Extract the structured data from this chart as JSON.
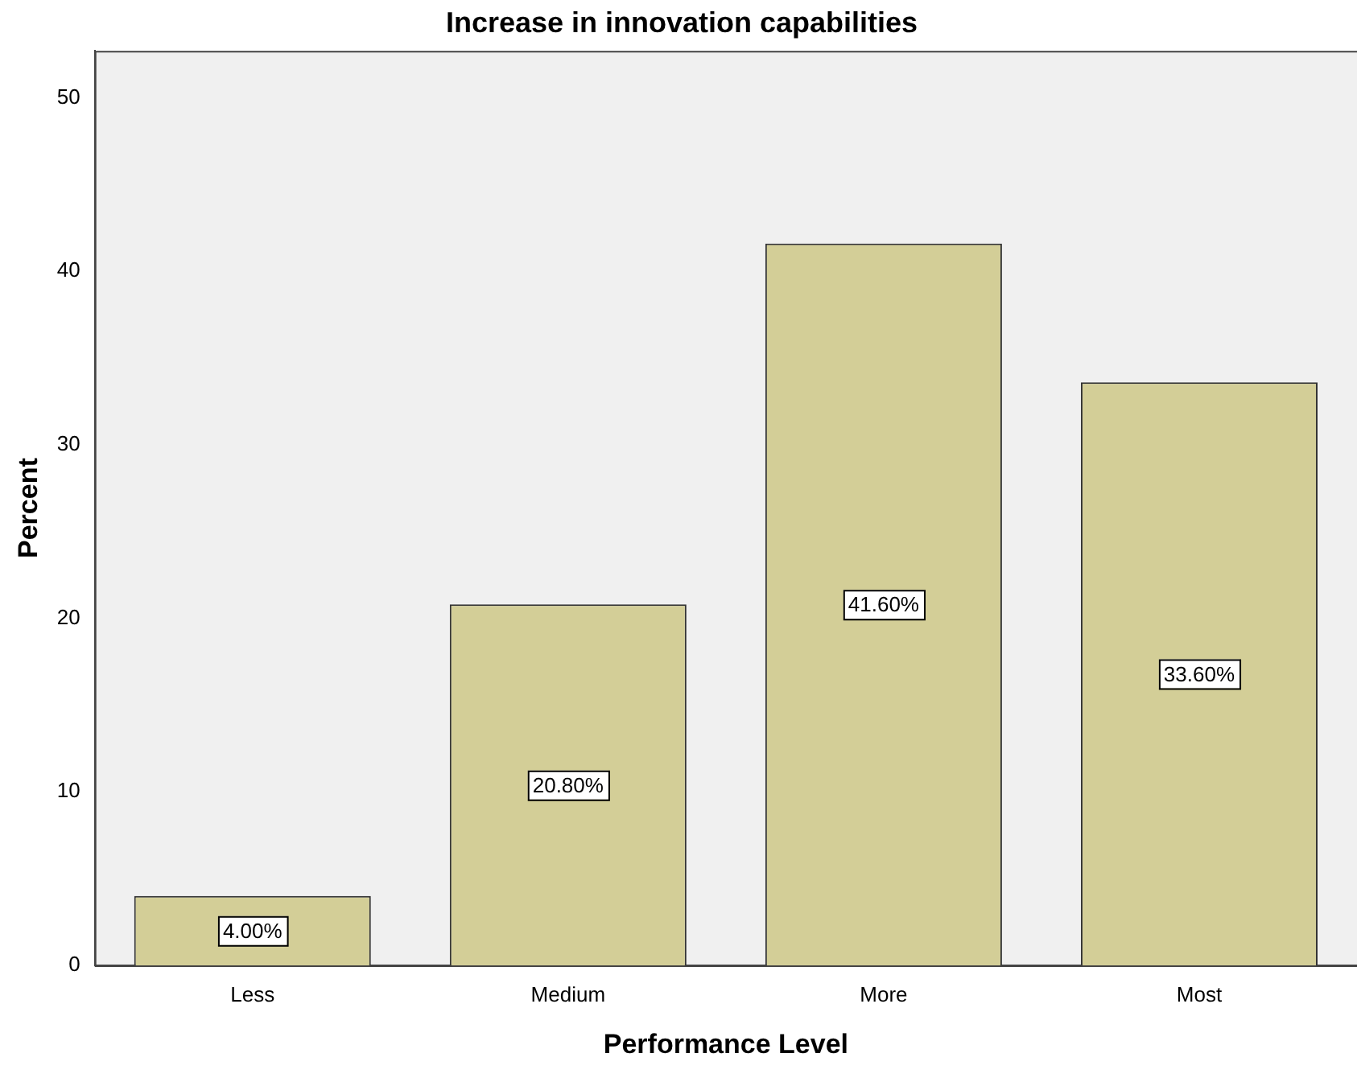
{
  "chart_data": {
    "type": "bar",
    "title": "Increase in innovation capabilities",
    "xlabel": "Performance Level",
    "ylabel": "Percent",
    "categories": [
      "Less",
      "Medium",
      "More",
      "Most"
    ],
    "values": [
      4.0,
      20.8,
      41.6,
      33.6
    ],
    "value_labels": [
      "4.00%",
      "20.80%",
      "41.60%",
      "33.60%"
    ],
    "color": "#d3ce97",
    "ylim": [
      0,
      52.7
    ],
    "yticks": [
      0,
      10,
      20,
      30,
      40,
      50
    ],
    "grid": false,
    "legend": false
  }
}
